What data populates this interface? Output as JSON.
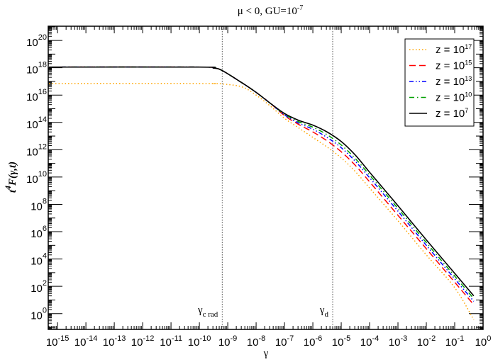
{
  "chart_data": {
    "type": "line",
    "title": "μ < 0, GU=10",
    "title_exp": "-7",
    "xlabel": "γ",
    "ylabel_main": "t",
    "ylabel_exp": "4",
    "ylabel_rest": "F(γ,t)",
    "x_scale": "log",
    "y_scale": "log",
    "xlim": [
      4.7e-16,
      1
    ],
    "ylim": [
      0.07,
      1.1e+21
    ],
    "x_tick_exponents": [
      "-15",
      "-14",
      "-13",
      "-12",
      "-11",
      "-10",
      "-9",
      "-8",
      "-7",
      "-6",
      "-5",
      "-4",
      "-3",
      "-2",
      "-1",
      "0"
    ],
    "y_tick_exponents": [
      "0",
      "2",
      "4",
      "6",
      "8",
      "10",
      "12",
      "14",
      "16",
      "18",
      "20"
    ],
    "tick_base": "10",
    "grid": false,
    "legend_placement": "top-right",
    "vlines": [
      {
        "x": 6.4e-10,
        "label": "γ",
        "sub": "c rad"
      },
      {
        "x": 5e-06,
        "label": "γ",
        "sub": "d"
      }
    ],
    "x": [
      5e-16,
      1e-10,
      3.16e-10,
      6.31e-10,
      3.16e-09,
      1e-08,
      3.16e-08,
      1e-07,
      3.16e-07,
      1e-06,
      3.16e-06,
      1e-05,
      3.16e-05,
      0.0001,
      0.001,
      0.01,
      0.1,
      0.47
    ],
    "series": [
      {
        "name": "z = 10",
        "exp": "17",
        "color": "#ffa500",
        "dash": "dotted",
        "values": [
          7.08e+16,
          7.08e+16,
          6.92e+16,
          6.6e+16,
          3.98e+16,
          1e+16,
          1580000000000000.0,
          200000000000000.0,
          39800000000000.0,
          7940000000000.0,
          1580000000000.0,
          251000000000.0,
          25100000000.0,
          1580000000.0,
          6310000.0,
          20000.0,
          79.4,
          0.355
        ]
      },
      {
        "name": "z = 10",
        "exp": "15",
        "color": "#ff0000",
        "dash": "dashed",
        "values": [
          1.12e+18,
          1.12e+18,
          9.55e+17,
          6.31e+17,
          7.94e+16,
          1.58e+16,
          2510000000000000.0,
          316000000000000.0,
          70800000000000.0,
          20000000000000.0,
          4470000000000.0,
          708000000000.0,
          70800000000.0,
          4470000000.0,
          15800000.0,
          56200.0,
          200,
          4.47
        ]
      },
      {
        "name": "z = 10",
        "exp": "13",
        "color": "#0000ff",
        "dash": "dash-dot-dot",
        "values": [
          1.12e+18,
          1.12e+18,
          9.55e+17,
          6.31e+17,
          7.94e+16,
          1.58e+16,
          2510000000000000.0,
          355000000000000.0,
          89100000000000.0,
          31600000000000.0,
          7940000000000.0,
          1410000000000.0,
          141000000000.0,
          8910000000.0,
          31600000.0,
          100000.0,
          355,
          7.94
        ]
      },
      {
        "name": "z = 10",
        "exp": "10",
        "color": "#00a000",
        "dash": "dash-dot",
        "values": [
          1.12e+18,
          1.12e+18,
          9.55e+17,
          6.31e+17,
          7.94e+16,
          1.58e+16,
          2510000000000000.0,
          398000000000000.0,
          112000000000000.0,
          44700000000000.0,
          12600000000000.0,
          2240000000000.0,
          224000000000.0,
          14100000000.0,
          50100000.0,
          158000.0,
          562,
          12.6
        ]
      },
      {
        "name": "z = 10",
        "exp": "7",
        "color": "#000000",
        "dash": "solid",
        "values": [
          1.12e+18,
          1.12e+18,
          9.55e+17,
          6.31e+17,
          7.94e+16,
          1.58e+16,
          2510000000000000.0,
          447000000000000.0,
          141000000000000.0,
          63100000000000.0,
          20000000000000.0,
          3980000000000.0,
          398000000000.0,
          22400000000.0,
          79400000.0,
          251000.0,
          891,
          20
        ]
      }
    ]
  }
}
